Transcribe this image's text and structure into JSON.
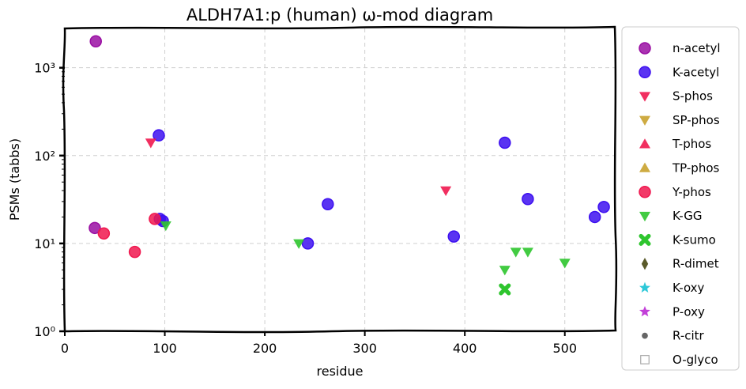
{
  "chart_data": {
    "type": "scatter",
    "title": "ALDH7A1:p (human) ω-mod diagram",
    "xlabel": "residue",
    "ylabel": "PSMs (tabbs)",
    "xlim": [
      0,
      550
    ],
    "ylim": [
      1,
      2800
    ],
    "yscale": "log",
    "xticks": [
      0,
      100,
      200,
      300,
      400,
      500
    ],
    "yticks": [
      {
        "value": 1,
        "label": "10⁰"
      },
      {
        "value": 10,
        "label": "10¹"
      },
      {
        "value": 100,
        "label": "10²"
      },
      {
        "value": 1000,
        "label": "10³"
      }
    ],
    "grid": true,
    "legend_position": "outside-right",
    "series": [
      {
        "name": "n-acetyl",
        "marker": "circle",
        "color": "#9a0fa3",
        "points": [
          [
            31,
            2000
          ],
          [
            30,
            15
          ]
        ]
      },
      {
        "name": "K-acetyl",
        "marker": "circle",
        "color": "#3d10f0",
        "points": [
          [
            94,
            170
          ],
          [
            95,
            19
          ],
          [
            98,
            18
          ],
          [
            263,
            28
          ],
          [
            243,
            10
          ],
          [
            389,
            12
          ],
          [
            440,
            140
          ],
          [
            463,
            32
          ],
          [
            530,
            20
          ],
          [
            539,
            26
          ]
        ]
      },
      {
        "name": "S-phos",
        "marker": "triangle-down",
        "color": "#f0184f",
        "points": [
          [
            86,
            140
          ],
          [
            381,
            40
          ]
        ]
      },
      {
        "name": "SP-phos",
        "marker": "triangle-down",
        "color": "#c9a22e",
        "points": []
      },
      {
        "name": "T-phos",
        "marker": "triangle-up",
        "color": "#f0184f",
        "points": []
      },
      {
        "name": "TP-phos",
        "marker": "triangle-up",
        "color": "#c9a22e",
        "points": []
      },
      {
        "name": "Y-phos",
        "marker": "circle",
        "color": "#f0184f",
        "points": [
          [
            39,
            13
          ],
          [
            70,
            8
          ],
          [
            90,
            19
          ]
        ]
      },
      {
        "name": "K-GG",
        "marker": "triangle-down",
        "color": "#2ec52e",
        "points": [
          [
            101,
            16
          ],
          [
            234,
            10
          ],
          [
            440,
            5
          ],
          [
            451,
            8
          ],
          [
            463,
            8
          ],
          [
            500,
            6
          ]
        ]
      },
      {
        "name": "K-sumo",
        "marker": "x",
        "color": "#2ec52e",
        "points": [
          [
            440,
            3
          ]
        ]
      },
      {
        "name": "R-dimet",
        "marker": "diamond",
        "color": "#5a5a2a",
        "points": []
      },
      {
        "name": "K-oxy",
        "marker": "star",
        "color": "#2ec8d8",
        "points": []
      },
      {
        "name": "P-oxy",
        "marker": "star",
        "color": "#c23fd8",
        "points": []
      },
      {
        "name": "R-citr",
        "marker": "dot",
        "color": "#666666",
        "points": []
      },
      {
        "name": "O-glyco",
        "marker": "square-open",
        "color": "#aaaaaa",
        "points": []
      }
    ]
  }
}
